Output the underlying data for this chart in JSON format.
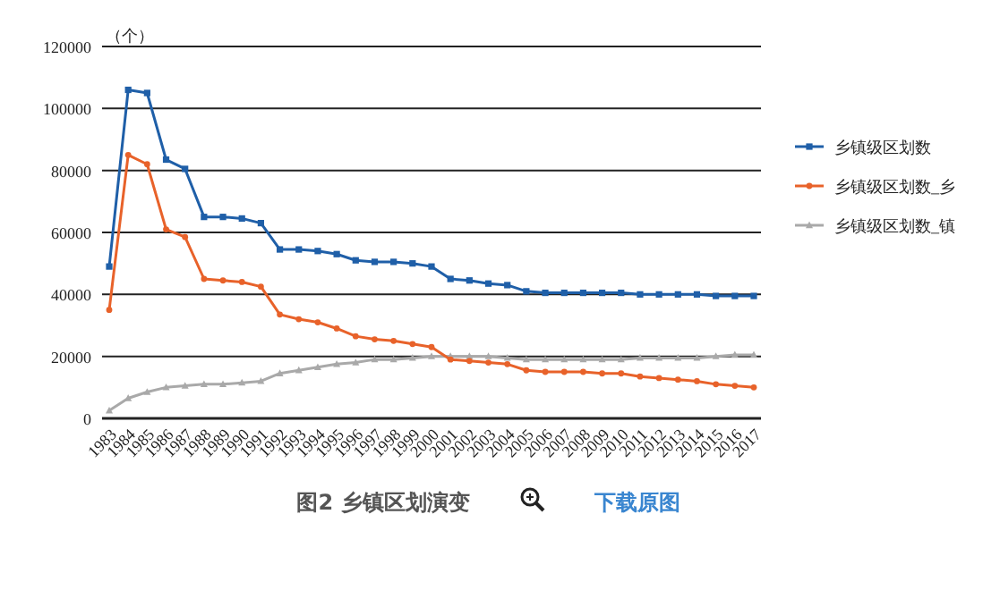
{
  "chart_data": {
    "type": "line",
    "title": "图2 乡镇区划演变",
    "ylabel": "（个）",
    "annotations": [
      "下载原图"
    ],
    "categories": [
      "1983",
      "1984",
      "1985",
      "1986",
      "1987",
      "1988",
      "1989",
      "1990",
      "1991",
      "1992",
      "1993",
      "1994",
      "1995",
      "1996",
      "1997",
      "1998",
      "1999",
      "2000",
      "2001",
      "2002",
      "2003",
      "2004",
      "2005",
      "2006",
      "2007",
      "2008",
      "2009",
      "2010",
      "2011",
      "2012",
      "2013",
      "2014",
      "2015",
      "2016",
      "2017"
    ],
    "series": [
      {
        "name": "乡镇级区划数",
        "color": "#1f5fa8",
        "marker": "square",
        "values": [
          49000,
          106000,
          105000,
          83500,
          80500,
          65000,
          65000,
          64500,
          63000,
          54500,
          54500,
          54000,
          53000,
          51000,
          50500,
          50500,
          50000,
          49000,
          45000,
          44500,
          43500,
          43000,
          41000,
          40500,
          40500,
          40500,
          40500,
          40500,
          40000,
          40000,
          40000,
          40000,
          39500,
          39500,
          39500
        ]
      },
      {
        "name": "乡镇级区划数_乡",
        "color": "#e8622a",
        "marker": "circle",
        "values": [
          35000,
          85000,
          82000,
          61000,
          58500,
          45000,
          44500,
          44000,
          42500,
          33500,
          32000,
          31000,
          29000,
          26500,
          25500,
          25000,
          24000,
          23000,
          19000,
          18500,
          18000,
          17500,
          15500,
          15000,
          15000,
          15000,
          14500,
          14500,
          13500,
          13000,
          12500,
          12000,
          11000,
          10500,
          10000
        ]
      },
      {
        "name": "乡镇级区划数_镇",
        "color": "#a9a9a9",
        "marker": "triangle",
        "values": [
          2500,
          6500,
          8500,
          10000,
          10500,
          11000,
          11000,
          11500,
          12000,
          14500,
          15500,
          16500,
          17500,
          18000,
          19000,
          19000,
          19500,
          20000,
          20000,
          20000,
          20000,
          19500,
          19000,
          19000,
          19000,
          19000,
          19000,
          19000,
          19500,
          19500,
          19500,
          19500,
          20000,
          20500,
          20500
        ]
      }
    ],
    "ylim": [
      0,
      120000
    ],
    "yticks": [
      0,
      20000,
      40000,
      60000,
      80000,
      100000,
      120000
    ],
    "grid": "y",
    "legend": "right"
  }
}
